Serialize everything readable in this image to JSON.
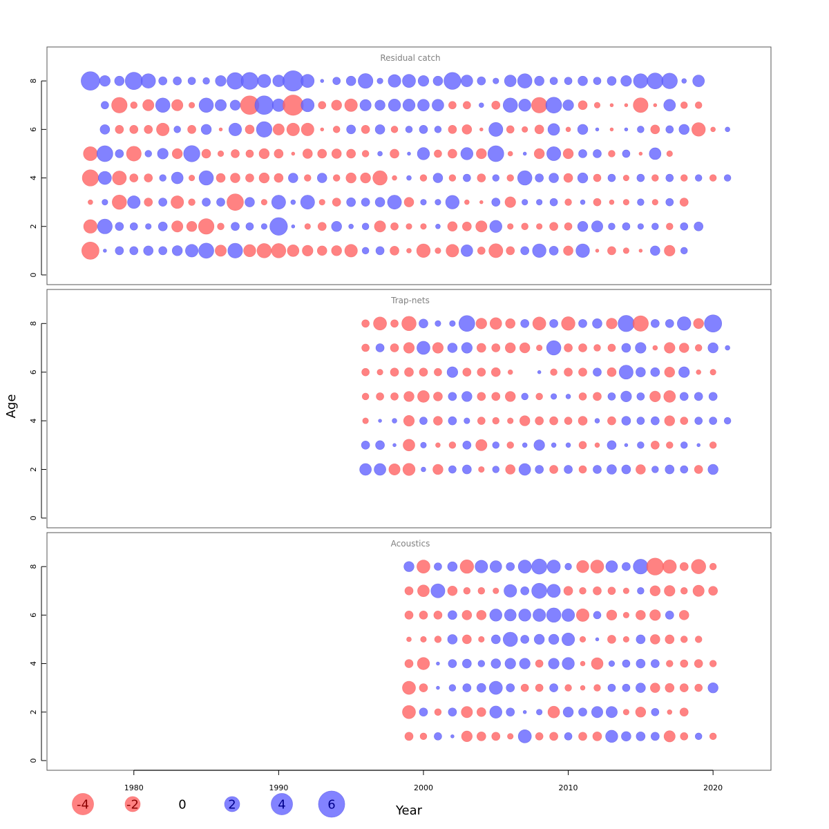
{
  "chart_data": {
    "type": "bubble",
    "xlabel": "Year",
    "ylabel": "Age",
    "xlim": [
      1974,
      2024
    ],
    "x_ticks": [
      1980,
      1990,
      2000,
      2010,
      2020
    ],
    "ylim": [
      -0.4,
      9.4
    ],
    "y_ticks": [
      0,
      2,
      4,
      6,
      8
    ],
    "colors": {
      "positive": "#6666ff",
      "negative": "#ff6666"
    },
    "panels": [
      {
        "title": "Residual catch",
        "start_year": 1977,
        "ages": [
          8,
          7,
          6,
          5,
          4,
          3,
          2,
          1
        ],
        "residuals": [
          [
            3.0,
            1.0,
            0.8,
            2.6,
            1.8,
            0.6,
            0.6,
            0.5,
            0.4,
            1.0,
            2.4,
            2.5,
            1.5,
            1.2,
            3.6,
            1.5,
            0.1,
            0.5,
            0.8,
            1.9,
            0.3,
            1.4,
            1.5,
            1.0,
            0.8,
            2.5,
            1.2,
            0.6,
            0.3,
            1.2,
            1.8,
            0.8,
            0.5,
            0.5,
            0.8,
            0.5,
            0.7,
            1.0,
            1.8,
            2.2,
            2.1,
            0.2,
            1.2
          ],
          [
            0,
            0.5,
            -2.1,
            -0.4,
            -1.1,
            1.8,
            -1.1,
            -0.3,
            1.8,
            1.1,
            0.9,
            -3.0,
            3.0,
            1.4,
            -3.6,
            1.5,
            -0.5,
            -0.9,
            -1.4,
            1.1,
            0.9,
            1.3,
            1.3,
            1.2,
            1.2,
            -0.5,
            -0.5,
            0.2,
            -0.6,
            1.8,
            1.3,
            -2.1,
            2.2,
            1.0,
            -0.7,
            -0.3,
            -0.1,
            -0.1,
            -1.9,
            -0.1,
            1.2,
            -0.4,
            -0.4
          ],
          [
            0,
            0.8,
            -0.6,
            -0.6,
            -0.6,
            -1.4,
            0.4,
            -0.6,
            0.9,
            -0.1,
            1.4,
            -0.7,
            2.1,
            -1.1,
            -1.4,
            -1.4,
            -0.1,
            -0.4,
            0.7,
            -0.6,
            0.8,
            -0.4,
            0.4,
            0.6,
            0.4,
            -0.6,
            -0.8,
            -0.1,
            1.7,
            -0.5,
            -0.3,
            -0.7,
            1.2,
            -0.2,
            0.9,
            0.1,
            -0.1,
            0.1,
            0.4,
            -0.7,
            0.5,
            0.9,
            -1.6,
            -0.2,
            0.2
          ],
          [
            -1.7,
            2.2,
            0.6,
            -1.9,
            0.4,
            1.0,
            -0.9,
            2.3,
            -0.7,
            -0.3,
            -0.6,
            -0.5,
            -0.9,
            -0.7,
            -0.1,
            -0.8,
            -0.7,
            -0.8,
            -0.7,
            -0.4,
            0.2,
            -0.7,
            0.1,
            1.3,
            -0.5,
            -0.7,
            1.3,
            -0.9,
            2.2,
            -0.2,
            0.1,
            -0.9,
            1.7,
            -0.9,
            0.6,
            0.6,
            -0.4,
            0.5,
            -0.1,
            1.2,
            -0.3
          ],
          [
            -2.3,
            1.5,
            -1.7,
            -0.6,
            -0.6,
            0.4,
            1.2,
            -0.3,
            1.8,
            -0.7,
            -0.8,
            -0.6,
            -0.9,
            -0.7,
            0.8,
            -0.4,
            0.8,
            -0.4,
            -0.9,
            -0.9,
            -1.8,
            -0.2,
            0.2,
            -0.4,
            0.8,
            -0.4,
            0.5,
            -0.6,
            0.4,
            -0.4,
            1.8,
            0.6,
            0.8,
            -0.7,
            0.9,
            -0.5,
            0.5,
            -0.3,
            0.5,
            -0.4,
            0.5,
            -0.4,
            0.4,
            -0.4,
            0.4
          ],
          [
            -0.2,
            0.3,
            -1.8,
            1.4,
            -0.6,
            0.6,
            -1.4,
            -0.4,
            0.6,
            0.6,
            -2.4,
            0.8,
            -0.3,
            1.7,
            0.2,
            1.7,
            -0.3,
            -0.6,
            0.7,
            0.6,
            0.8,
            1.7,
            -0.8,
            0.3,
            0.3,
            1.6,
            -0.2,
            -0.1,
            0.6,
            -1.0,
            0.3,
            0.3,
            0.5,
            -0.4,
            0.2,
            -0.5,
            -0.2,
            -0.3,
            0.4,
            -0.3,
            0.5,
            -0.6
          ],
          [
            -1.6,
            1.9,
            0.6,
            0.5,
            0.3,
            0.7,
            -1.1,
            -0.9,
            -2.1,
            -0.4,
            0.6,
            0.5,
            0.3,
            2.7,
            0.1,
            -0.3,
            -0.6,
            0.9,
            0.2,
            0.4,
            -1.1,
            -0.5,
            -0.3,
            -0.3,
            0.2,
            -0.8,
            -0.7,
            -1.1,
            1.3,
            -0.3,
            -0.4,
            -0.3,
            -0.6,
            -0.5,
            0.9,
            1.1,
            0.4,
            0.5,
            0.3,
            0.4,
            -0.4,
            0.5,
            0.7
          ],
          [
            -2.6,
            0.1,
            0.6,
            0.6,
            0.8,
            0.6,
            0.9,
            1.4,
            2.0,
            -1.1,
            1.9,
            -1.3,
            -1.8,
            -1.8,
            -1.2,
            -1.0,
            -0.8,
            -0.9,
            -1.4,
            0.4,
            0.6,
            -0.7,
            -0.2,
            -1.6,
            -0.3,
            -1.4,
            1.2,
            -0.5,
            -1.7,
            -0.6,
            0.6,
            1.6,
            0.7,
            -0.8,
            1.6,
            -0.1,
            -0.6,
            -0.3,
            -0.1,
            0.8,
            -1.0,
            0.4
          ]
        ]
      },
      {
        "title": "Trap-nets",
        "start_year": 1996,
        "ages": [
          8,
          7,
          6,
          5,
          4,
          3,
          2
        ],
        "residuals": [
          [
            -0.5,
            -1.5,
            -0.5,
            -1.8,
            0.7,
            0.3,
            0.3,
            2.2,
            -1.0,
            -1.2,
            -0.8,
            0.6,
            -1.5,
            0.6,
            -1.6,
            0.6,
            0.8,
            -1.0,
            2.3,
            -2.1,
            0.6,
            0.6,
            1.6,
            -0.9,
            2.6
          ],
          [
            -0.5,
            0.6,
            -0.6,
            -1.0,
            1.5,
            -1.0,
            0.8,
            1.0,
            -0.7,
            -0.6,
            -0.9,
            -0.9,
            -0.3,
            1.8,
            -0.6,
            -0.6,
            -0.4,
            -0.5,
            0.7,
            1.0,
            -0.2,
            -1.0,
            -0.8,
            -0.4,
            0.9,
            0.2
          ],
          [
            -0.5,
            -0.3,
            -0.6,
            -0.7,
            -0.6,
            -0.5,
            1.0,
            -0.6,
            -0.6,
            -0.7,
            -0.2,
            0.0,
            0.1,
            -0.4,
            -0.6,
            -0.6,
            0.6,
            -0.7,
            1.7,
            0.8,
            0.7,
            -0.9,
            1.0,
            -0.2,
            -0.3
          ],
          [
            -0.4,
            -0.5,
            -0.5,
            -0.9,
            -1.2,
            -0.7,
            0.6,
            0.9,
            -0.6,
            -0.6,
            -0.9,
            0.4,
            -0.4,
            0.3,
            0.2,
            -0.5,
            -0.6,
            0.5,
            1.0,
            0.5,
            -1.0,
            -1.2,
            0.6,
            0.6,
            0.6
          ],
          [
            -0.3,
            0.1,
            0.2,
            -1.0,
            0.5,
            -0.7,
            0.6,
            0.3,
            -0.5,
            -0.4,
            -0.3,
            -0.9,
            -0.6,
            -0.6,
            -0.5,
            -0.7,
            0.2,
            -0.6,
            0.7,
            0.5,
            0.6,
            -0.9,
            -0.5,
            0.5,
            0.5,
            0.4
          ],
          [
            0.6,
            0.7,
            0.1,
            -1.2,
            0.3,
            -0.2,
            -0.4,
            0.6,
            -1.1,
            0.4,
            -0.4,
            0.2,
            1.0,
            0.2,
            0.2,
            -0.5,
            -0.2,
            0.7,
            0.1,
            0.4,
            -0.6,
            -0.4,
            0.4,
            0.1,
            -0.4
          ],
          [
            1.2,
            1.2,
            -1.1,
            -1.3,
            0.2,
            -0.9,
            0.5,
            0.7,
            -0.3,
            0.4,
            -0.8,
            1.2,
            0.6,
            -0.6,
            0.6,
            -0.5,
            0.6,
            0.8,
            0.7,
            -0.8,
            0.4,
            0.7,
            0.5,
            -0.6,
            0.9
          ]
        ]
      },
      {
        "title": "Acoustics",
        "start_year": 1999,
        "ages": [
          8,
          7,
          6,
          5,
          4,
          3,
          2,
          1
        ],
        "residuals": [
          [
            0.9,
            -1.5,
            0.5,
            0.8,
            -1.6,
            1.4,
            1.2,
            0.6,
            1.5,
            2.0,
            1.5,
            0.4,
            -1.3,
            -1.5,
            1.2,
            0.6,
            1.9,
            -2.5,
            -1.6,
            -0.6,
            -1.8,
            -0.4
          ],
          [
            -0.6,
            -1.2,
            1.7,
            -0.8,
            -0.4,
            -0.4,
            -0.3,
            1.4,
            0.6,
            2.0,
            1.5,
            -0.7,
            -0.4,
            -0.6,
            -0.5,
            -0.3,
            0.4,
            -0.9,
            -1.0,
            -0.4,
            -1.1,
            -0.7
          ],
          [
            -0.6,
            -0.6,
            -0.6,
            0.7,
            -0.8,
            -0.8,
            1.3,
            1.2,
            1.3,
            1.4,
            1.8,
            1.4,
            -1.4,
            0.5,
            -0.9,
            -0.3,
            -0.8,
            -1.0,
            0.6,
            -0.8
          ],
          [
            -0.2,
            -0.3,
            -0.4,
            0.8,
            -0.7,
            -0.3,
            0.7,
            1.8,
            0.6,
            0.9,
            0.9,
            1.4,
            -0.3,
            0.1,
            -0.6,
            -0.3,
            0.7,
            -0.8,
            -0.7,
            -0.4,
            -0.4
          ],
          [
            -0.6,
            -1.3,
            0.1,
            0.6,
            0.7,
            0.4,
            0.8,
            1.0,
            1.0,
            -0.5,
            1.0,
            1.3,
            -0.2,
            -1.2,
            0.3,
            0.5,
            0.7,
            0.6,
            -0.4,
            -0.5,
            -0.6,
            -0.4
          ],
          [
            -1.5,
            -0.6,
            0.1,
            0.4,
            0.6,
            0.7,
            1.5,
            0.6,
            -0.5,
            -0.5,
            0.6,
            -0.4,
            -0.2,
            -0.4,
            0.5,
            0.5,
            0.8,
            -0.8,
            -0.7,
            -0.6,
            -0.5,
            0.9
          ],
          [
            -1.5,
            0.6,
            -0.4,
            0.6,
            -1.1,
            -0.7,
            1.3,
            0.6,
            0.1,
            0.3,
            -1.2,
            0.9,
            0.6,
            1.1,
            1.1,
            -0.3,
            -0.9,
            0.5,
            -0.2,
            -0.6
          ],
          [
            -0.6,
            -0.4,
            0.5,
            0.1,
            -1.0,
            -0.7,
            -0.6,
            -0.3,
            1.5,
            -0.5,
            -0.6,
            0.5,
            -0.6,
            -0.7,
            1.3,
            0.8,
            0.7,
            0.6,
            -1.1,
            -0.5,
            0.4,
            -0.4
          ]
        ]
      }
    ],
    "legend": {
      "placement": "bottom-left",
      "entries": [
        {
          "label": "-4",
          "value": -4
        },
        {
          "label": "-2",
          "value": -2
        },
        {
          "label": "0",
          "value": 0
        },
        {
          "label": "2",
          "value": 2
        },
        {
          "label": "4",
          "value": 4
        },
        {
          "label": "6",
          "value": 6
        }
      ]
    }
  }
}
